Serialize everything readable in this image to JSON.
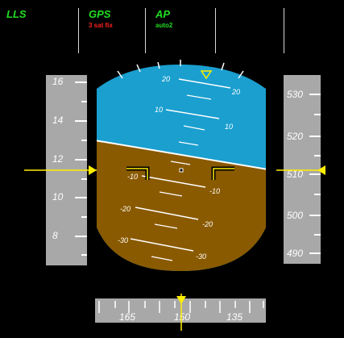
{
  "header": {
    "lls_label": "LLS",
    "gps_label": "GPS",
    "gps_status": "3 sat fix",
    "ap_label": "AP",
    "ap_mode": "auto2"
  },
  "attitude": {
    "pitch_labels_left": [
      "20",
      "10",
      "-10",
      "-20",
      "-30"
    ],
    "pitch_labels_right": [
      "20",
      "10",
      "-10",
      "-20",
      "-30"
    ]
  },
  "left_tape": {
    "labels": [
      "16",
      "14",
      "12",
      "10",
      "8"
    ]
  },
  "right_tape": {
    "labels": [
      "530",
      "520",
      "510",
      "500",
      "490"
    ]
  },
  "heading_tape": {
    "labels": [
      "165",
      "150",
      "135"
    ]
  },
  "colors": {
    "sky": "#1a9fcf",
    "ground": "#8a5a00",
    "tape": "#a8a8a8",
    "marker": "#ffee00",
    "header_green": "#22dd22",
    "gps_red": "#ff2222"
  }
}
